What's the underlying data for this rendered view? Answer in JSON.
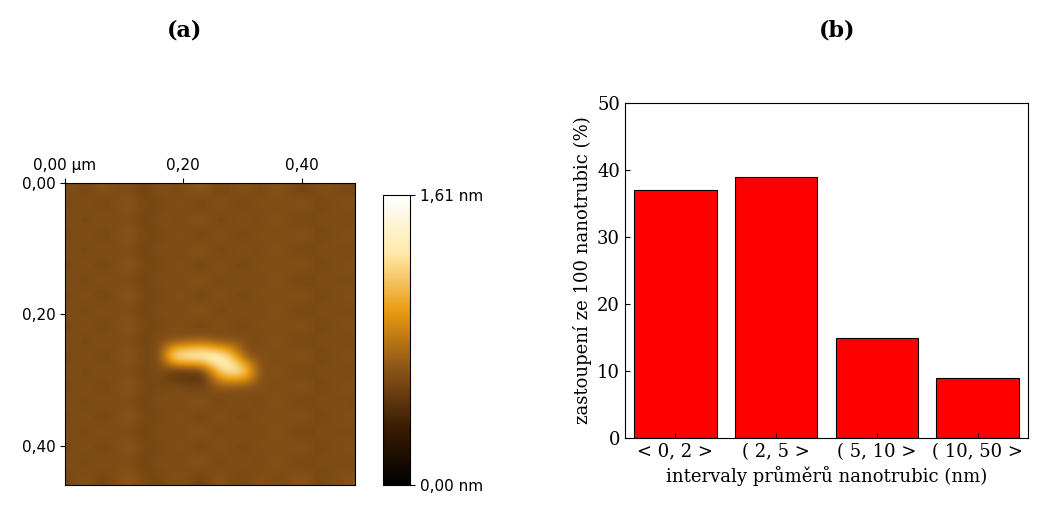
{
  "chart_data": [
    {
      "type": "heatmap",
      "title": "(a)",
      "xlim": [
        0,
        0.49
      ],
      "ylim": [
        0.46,
        0
      ],
      "xticks": [
        {
          "value": 0.0,
          "label": "0,00 µm"
        },
        {
          "value": 0.2,
          "label": "0,20"
        },
        {
          "value": 0.4,
          "label": "0,40"
        }
      ],
      "yticks": [
        {
          "value": 0.0,
          "label": "0,00"
        },
        {
          "value": 0.2,
          "label": "0,20"
        },
        {
          "value": 0.4,
          "label": "0,40"
        }
      ],
      "colorbar_range": [
        0,
        1.61
      ],
      "colorbar_ticks": [
        {
          "value": 0,
          "label": "0,00 nm"
        },
        {
          "value": 1.61,
          "label": "1,61 nm"
        }
      ],
      "cells": [
        [
          0.62,
          0.55,
          0.66,
          0.58,
          0.6,
          0.52,
          0.64,
          0.57,
          0.61,
          0.68,
          0.54,
          0.6,
          0.63,
          0.56,
          0.65,
          0.59,
          0.53,
          0.62,
          0.6,
          0.57
        ],
        [
          0.57,
          0.64,
          0.53,
          0.61,
          0.67,
          0.58,
          0.55,
          0.63,
          0.6,
          0.52,
          0.66,
          0.59,
          0.56,
          0.64,
          0.58,
          0.61,
          0.67,
          0.55,
          0.6,
          0.63
        ],
        [
          0.62,
          0.55,
          0.66,
          0.58,
          0.6,
          0.52,
          0.64,
          0.57,
          0.61,
          0.68,
          0.54,
          0.6,
          0.63,
          0.56,
          0.65,
          0.59,
          0.53,
          0.62,
          0.6,
          0.57
        ],
        [
          0.57,
          0.64,
          0.53,
          0.61,
          0.67,
          0.58,
          0.55,
          0.63,
          0.6,
          0.52,
          0.66,
          0.59,
          0.56,
          0.64,
          0.58,
          0.61,
          0.67,
          0.55,
          0.6,
          0.63
        ],
        [
          0.62,
          0.55,
          0.66,
          0.58,
          0.6,
          0.52,
          0.64,
          0.57,
          0.61,
          0.68,
          0.54,
          0.6,
          0.63,
          0.56,
          0.65,
          0.59,
          0.53,
          0.62,
          0.6,
          0.57
        ],
        [
          0.57,
          0.64,
          0.53,
          0.61,
          0.67,
          0.58,
          0.55,
          0.63,
          0.6,
          0.52,
          0.66,
          0.59,
          0.56,
          0.64,
          0.58,
          0.61,
          0.67,
          0.55,
          0.6,
          0.63
        ],
        [
          0.62,
          0.55,
          0.66,
          0.58,
          0.6,
          0.52,
          0.64,
          0.57,
          0.61,
          0.68,
          0.54,
          0.6,
          0.63,
          0.56,
          0.65,
          0.59,
          0.53,
          0.62,
          0.6,
          0.57
        ],
        [
          0.57,
          0.64,
          0.53,
          0.61,
          0.67,
          0.58,
          0.55,
          0.63,
          0.6,
          0.52,
          0.66,
          0.59,
          0.56,
          0.64,
          0.58,
          0.61,
          0.67,
          0.55,
          0.6,
          0.63
        ],
        [
          0.62,
          0.55,
          0.66,
          0.58,
          0.6,
          0.52,
          0.64,
          0.57,
          0.61,
          0.68,
          0.54,
          0.6,
          0.63,
          0.56,
          0.65,
          0.59,
          0.53,
          0.62,
          0.6,
          0.57
        ],
        [
          0.57,
          0.64,
          0.53,
          0.61,
          0.67,
          0.58,
          0.55,
          0.63,
          0.6,
          0.52,
          0.66,
          0.59,
          0.56,
          0.64,
          0.58,
          0.61,
          0.67,
          0.55,
          0.6,
          0.63
        ],
        [
          0.62,
          0.55,
          0.66,
          0.58,
          0.6,
          0.52,
          0.64,
          0.57,
          0.61,
          0.68,
          0.54,
          0.6,
          0.63,
          0.56,
          0.65,
          0.59,
          0.53,
          0.62,
          0.6,
          0.57
        ],
        [
          0.57,
          0.64,
          0.53,
          0.61,
          0.67,
          0.58,
          0.55,
          1.5,
          1.58,
          1.6,
          1.55,
          1.2,
          0.56,
          0.64,
          0.58,
          0.61,
          0.67,
          0.55,
          0.6,
          0.63
        ],
        [
          0.62,
          0.55,
          0.66,
          0.58,
          0.6,
          0.52,
          0.64,
          0.35,
          0.35,
          0.4,
          1.1,
          1.45,
          1.35,
          0.56,
          0.65,
          0.59,
          0.53,
          0.62,
          0.6,
          0.57
        ],
        [
          0.57,
          0.64,
          0.53,
          0.61,
          0.67,
          0.58,
          0.55,
          0.63,
          0.6,
          0.52,
          0.66,
          0.59,
          0.56,
          0.64,
          0.58,
          0.61,
          0.67,
          0.55,
          0.6,
          0.63
        ],
        [
          0.62,
          0.55,
          0.66,
          0.58,
          0.6,
          0.52,
          0.64,
          0.57,
          0.61,
          0.68,
          0.54,
          0.6,
          0.63,
          0.56,
          0.65,
          0.59,
          0.53,
          0.62,
          0.6,
          0.57
        ],
        [
          0.57,
          0.64,
          0.53,
          0.61,
          0.67,
          0.58,
          0.55,
          0.63,
          0.6,
          0.52,
          0.66,
          0.59,
          0.56,
          0.64,
          0.58,
          0.61,
          0.67,
          0.55,
          0.6,
          0.63
        ],
        [
          0.62,
          0.55,
          0.66,
          0.58,
          0.6,
          0.52,
          0.64,
          0.57,
          0.61,
          0.68,
          0.54,
          0.6,
          0.63,
          0.56,
          0.65,
          0.59,
          0.53,
          0.62,
          0.6,
          0.57
        ],
        [
          0.57,
          0.64,
          0.53,
          0.61,
          0.67,
          0.58,
          0.55,
          0.63,
          0.6,
          0.52,
          0.66,
          0.59,
          0.56,
          0.64,
          0.58,
          0.61,
          0.67,
          0.55,
          0.6,
          0.63
        ],
        [
          0.62,
          0.55,
          0.66,
          0.58,
          0.6,
          0.52,
          0.64,
          0.57,
          0.61,
          0.68,
          0.54,
          0.6,
          0.63,
          0.56,
          0.65,
          0.59,
          0.53,
          0.62,
          0.6,
          0.57
        ],
        [
          0.57,
          0.64,
          0.53,
          0.61,
          0.67,
          0.58,
          0.55,
          0.63,
          0.6,
          0.52,
          0.66,
          0.59,
          0.56,
          0.64,
          0.58,
          0.61,
          0.67,
          0.55,
          0.6,
          0.63
        ]
      ]
    },
    {
      "type": "bar",
      "title": "(b)",
      "categories": [
        "< 0, 2 >",
        "( 2, 5 >",
        "( 5, 10 >",
        "( 10, 50 >"
      ],
      "values": [
        37,
        39,
        15,
        9
      ],
      "color": "#ff0000",
      "ylim": [
        0,
        50
      ],
      "yticks": [
        0,
        10,
        20,
        30,
        40,
        50
      ],
      "ylabel": "zastoupení ze 100 nanotrubic (%)",
      "xlabel": "intervaly průměrů nanotrubic (nm)"
    }
  ]
}
